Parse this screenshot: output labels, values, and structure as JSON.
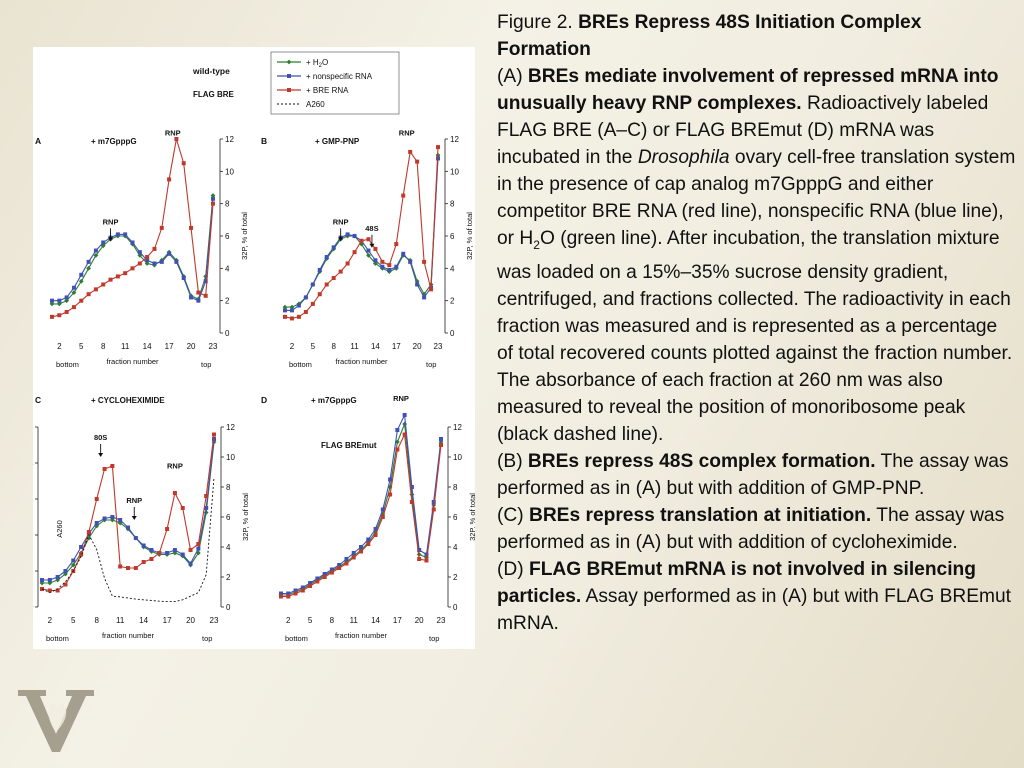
{
  "colors": {
    "h2o": "#2e7d32",
    "nonspecific": "#3f51b5",
    "bre": "#c0392b",
    "a260": "#111111"
  },
  "legend": {
    "group_title": "wild-type",
    "group_subtitle": "FLAG BRE",
    "entries": [
      {
        "prefix": "+ H",
        "sub": "2",
        "suffix": "O",
        "color": "#2e7d32",
        "marker": "diamond"
      },
      {
        "prefix": "+ nonspecific RNA",
        "sub": "",
        "suffix": "",
        "color": "#3f51b5",
        "marker": "square"
      },
      {
        "prefix": "+ BRE RNA",
        "sub": "",
        "suffix": "",
        "color": "#c0392b",
        "marker": "square"
      },
      {
        "prefix": "A260",
        "sub": "",
        "suffix": "",
        "color": "#111111",
        "marker": "dashed"
      }
    ]
  },
  "common": {
    "xticks": [
      "2",
      "5",
      "8",
      "11",
      "14",
      "17",
      "20",
      "23"
    ],
    "xlabel": "fraction number",
    "bottom_label": "bottom",
    "top_label": "top",
    "ylabel_right": "32P, % of total"
  },
  "chart_data": [
    {
      "letter": "A",
      "title": "+ m7GpppG",
      "type": "line",
      "xlim": [
        1,
        23
      ],
      "ylim": [
        0,
        12
      ],
      "yticks": [
        "0",
        "2",
        "4",
        "6",
        "8",
        "10",
        "12"
      ],
      "annotations": [
        {
          "text": "RNP",
          "x": 17.5,
          "y": 12.1,
          "arrow": false
        },
        {
          "text": "RNP",
          "x": 9,
          "y": 6.6,
          "arrow": true
        }
      ],
      "series": [
        {
          "name": "+ H2O",
          "key": "h2o",
          "x": [
            1,
            2,
            3,
            4,
            5,
            6,
            7,
            8,
            9,
            10,
            11,
            12,
            13,
            14,
            15,
            16,
            17,
            18,
            19,
            20,
            21,
            22,
            23
          ],
          "values": [
            1.8,
            1.8,
            2,
            2.5,
            3.2,
            4,
            4.8,
            5.4,
            5.8,
            6,
            6,
            5.5,
            4.8,
            4.3,
            4.2,
            4.5,
            5,
            4.5,
            3.5,
            2.3,
            2.1,
            3.5,
            8.5
          ]
        },
        {
          "name": "+ nonspecific RNA",
          "key": "nonspecific",
          "x": [
            1,
            2,
            3,
            4,
            5,
            6,
            7,
            8,
            9,
            10,
            11,
            12,
            13,
            14,
            15,
            16,
            17,
            18,
            19,
            20,
            21,
            22,
            23
          ],
          "values": [
            2,
            2,
            2.2,
            2.8,
            3.6,
            4.4,
            5.1,
            5.6,
            5.9,
            6.1,
            6.1,
            5.6,
            5,
            4.5,
            4.3,
            4.4,
            4.9,
            4.4,
            3.4,
            2.2,
            2,
            3.2,
            8.3
          ]
        },
        {
          "name": "+ BRE RNA",
          "key": "bre",
          "x": [
            1,
            2,
            3,
            4,
            5,
            6,
            7,
            8,
            9,
            10,
            11,
            12,
            13,
            14,
            15,
            16,
            17,
            18,
            19,
            20,
            21,
            22,
            23
          ],
          "values": [
            1,
            1.1,
            1.3,
            1.6,
            2,
            2.4,
            2.7,
            3,
            3.3,
            3.5,
            3.7,
            4,
            4.3,
            4.7,
            5.2,
            6.5,
            9.5,
            12,
            10.5,
            6.5,
            2.5,
            2.3,
            8
          ]
        }
      ]
    },
    {
      "letter": "B",
      "title": "+ GMP-PNP",
      "type": "line",
      "xlim": [
        1,
        23
      ],
      "ylim": [
        0,
        12
      ],
      "yticks": [
        "0",
        "2",
        "4",
        "6",
        "8",
        "10",
        "12"
      ],
      "annotations": [
        {
          "text": "RNP",
          "x": 18.5,
          "y": 12.1,
          "arrow": false
        },
        {
          "text": "RNP",
          "x": 9,
          "y": 6.6,
          "arrow": true
        },
        {
          "text": "48S",
          "x": 13.5,
          "y": 6.2,
          "arrow": true
        }
      ],
      "series": [
        {
          "name": "+ H2O",
          "key": "h2o",
          "x": [
            1,
            2,
            3,
            4,
            5,
            6,
            7,
            8,
            9,
            10,
            11,
            12,
            13,
            14,
            15,
            16,
            17,
            18,
            19,
            20,
            21,
            22,
            23
          ],
          "values": [
            1.6,
            1.6,
            1.8,
            2.2,
            3,
            3.8,
            4.6,
            5.2,
            5.8,
            6,
            6,
            5.5,
            4.8,
            4.3,
            4,
            3.8,
            4,
            4.8,
            4.5,
            3.2,
            2.4,
            3,
            11
          ]
        },
        {
          "name": "+ nonspecific RNA",
          "key": "nonspecific",
          "x": [
            1,
            2,
            3,
            4,
            5,
            6,
            7,
            8,
            9,
            10,
            11,
            12,
            13,
            14,
            15,
            16,
            17,
            18,
            19,
            20,
            21,
            22,
            23
          ],
          "values": [
            1.4,
            1.4,
            1.7,
            2.2,
            3,
            3.9,
            4.7,
            5.3,
            5.9,
            6.1,
            6,
            5.7,
            5.1,
            4.5,
            4.1,
            3.9,
            4.1,
            4.9,
            4.4,
            3,
            2.2,
            2.8,
            10.8
          ]
        },
        {
          "name": "+ BRE RNA",
          "key": "bre",
          "x": [
            1,
            2,
            3,
            4,
            5,
            6,
            7,
            8,
            9,
            10,
            11,
            12,
            13,
            14,
            15,
            16,
            17,
            18,
            19,
            20,
            21,
            22,
            23
          ],
          "values": [
            1,
            0.9,
            1,
            1.3,
            1.8,
            2.4,
            3,
            3.4,
            3.8,
            4.3,
            5,
            5.7,
            5.8,
            5.2,
            4.4,
            4.2,
            5.5,
            8.5,
            11.2,
            10.6,
            4.4,
            2.7,
            11.5
          ]
        }
      ]
    },
    {
      "letter": "C",
      "title": "+ CYCLOHEXIMIDE",
      "type": "line",
      "xlim": [
        1,
        23
      ],
      "ylim": [
        0,
        12
      ],
      "yticks": [
        "0",
        "2",
        "4",
        "6",
        "8",
        "10",
        "12"
      ],
      "yticks_left": [
        "0",
        "1",
        "2",
        "3",
        "4",
        "5"
      ],
      "ylabel_left": "A260",
      "ylim_left": [
        0,
        5
      ],
      "annotations": [
        {
          "text": "80S",
          "x": 8.5,
          "y": 11,
          "arrow": true
        },
        {
          "text": "RNP",
          "x": 18,
          "y": 9.1,
          "arrow": false
        },
        {
          "text": "RNP",
          "x": 12.8,
          "y": 6.8,
          "arrow": true
        }
      ],
      "series": [
        {
          "name": "+ H2O",
          "key": "h2o",
          "x": [
            1,
            2,
            3,
            4,
            5,
            6,
            7,
            8,
            9,
            10,
            11,
            12,
            13,
            14,
            15,
            16,
            17,
            18,
            19,
            20,
            21,
            22,
            23
          ],
          "values": [
            1.6,
            1.6,
            1.8,
            2.2,
            2.8,
            3.6,
            4.6,
            5.4,
            5.8,
            5.8,
            5.6,
            5.2,
            4.6,
            4,
            3.7,
            3.5,
            3.5,
            3.6,
            3.4,
            2.8,
            3.6,
            6.3,
            11
          ]
        },
        {
          "name": "+ nonspecific RNA",
          "key": "nonspecific",
          "x": [
            1,
            2,
            3,
            4,
            5,
            6,
            7,
            8,
            9,
            10,
            11,
            12,
            13,
            14,
            15,
            16,
            17,
            18,
            19,
            20,
            21,
            22,
            23
          ],
          "values": [
            1.8,
            1.8,
            2,
            2.4,
            3.1,
            4,
            4.9,
            5.6,
            5.9,
            6,
            5.8,
            5.3,
            4.6,
            4.1,
            3.8,
            3.6,
            3.6,
            3.8,
            3.5,
            2.9,
            3.9,
            6.6,
            11.2
          ]
        },
        {
          "name": "+ BRE RNA",
          "key": "bre",
          "x": [
            1,
            2,
            3,
            4,
            5,
            6,
            7,
            8,
            9,
            10,
            11,
            12,
            13,
            14,
            15,
            16,
            17,
            18,
            19,
            20,
            21,
            22,
            23
          ],
          "values": [
            1.2,
            1.1,
            1.1,
            1.5,
            2.4,
            3.5,
            5,
            7.2,
            9.2,
            9.4,
            2.7,
            2.6,
            2.6,
            3,
            3.2,
            3.6,
            5.2,
            7.6,
            6.6,
            3.8,
            4.2,
            7.4,
            11.5
          ]
        },
        {
          "name": "A260",
          "key": "a260",
          "axis": "left",
          "x": [
            1,
            2,
            3,
            4,
            5,
            6,
            7,
            8,
            9,
            10,
            11,
            12,
            13,
            14,
            15,
            16,
            17,
            18,
            19,
            20,
            21,
            22,
            23
          ],
          "values": [
            0.5,
            0.4,
            0.5,
            0.7,
            1,
            1.4,
            2,
            1.6,
            0.8,
            0.3,
            0.28,
            0.25,
            0.22,
            0.2,
            0.18,
            0.16,
            0.15,
            0.15,
            0.2,
            0.3,
            0.4,
            0.9,
            3.6
          ]
        }
      ]
    },
    {
      "letter": "D",
      "title": "+ m7GpppG",
      "subtitle": "FLAG BREmut",
      "type": "line",
      "xlim": [
        1,
        23
      ],
      "ylim": [
        0,
        12
      ],
      "yticks": [
        "0",
        "2",
        "4",
        "6",
        "8",
        "10",
        "12"
      ],
      "annotations": [
        {
          "text": "RNP",
          "x": 17.5,
          "y": 13.6,
          "arrow": false
        }
      ],
      "series": [
        {
          "name": "+ H2O",
          "key": "h2o",
          "x": [
            1,
            2,
            3,
            4,
            5,
            6,
            7,
            8,
            9,
            10,
            11,
            12,
            13,
            14,
            15,
            16,
            17,
            18,
            19,
            20,
            21,
            22,
            23
          ],
          "values": [
            0.8,
            0.8,
            1,
            1.2,
            1.5,
            1.8,
            2.1,
            2.4,
            2.7,
            3,
            3.4,
            3.8,
            4.3,
            5,
            6.2,
            8,
            11,
            12.2,
            7.5,
            3.5,
            3.3,
            6.8,
            11
          ]
        },
        {
          "name": "+ nonspecific RNA",
          "key": "nonspecific",
          "x": [
            1,
            2,
            3,
            4,
            5,
            6,
            7,
            8,
            9,
            10,
            11,
            12,
            13,
            14,
            15,
            16,
            17,
            18,
            19,
            20,
            21,
            22,
            23
          ],
          "values": [
            0.9,
            0.9,
            1.1,
            1.3,
            1.6,
            1.9,
            2.2,
            2.5,
            2.8,
            3.2,
            3.6,
            4,
            4.5,
            5.2,
            6.5,
            8.5,
            11.8,
            12.8,
            8,
            3.8,
            3.5,
            7,
            11.2
          ]
        },
        {
          "name": "+ BRE RNA",
          "key": "bre",
          "x": [
            1,
            2,
            3,
            4,
            5,
            6,
            7,
            8,
            9,
            10,
            11,
            12,
            13,
            14,
            15,
            16,
            17,
            18,
            19,
            20,
            21,
            22,
            23
          ],
          "values": [
            0.7,
            0.7,
            0.9,
            1.1,
            1.4,
            1.7,
            2,
            2.3,
            2.6,
            2.9,
            3.3,
            3.7,
            4.2,
            4.8,
            6,
            7.5,
            10.5,
            11.5,
            7,
            3.2,
            3.1,
            6.5,
            10.8
          ]
        }
      ]
    }
  ],
  "caption": {
    "fig_prefix": "Figure 2. ",
    "fig_title": "BREs Repress 48S Initiation Complex Formation",
    "a_prefix": "(A) ",
    "a_title": "BREs mediate involvement of repressed mRNA into unusually heavy RNP complexes.",
    "a_text_1": " Radioactively labeled FLAG BRE (A–C) or FLAG BREmut (D) mRNA was incubated in the ",
    "a_italic": "Drosophila",
    "a_text_2": " ovary cell-free translation system in the presence of cap analog m7GpppG and either competitor BRE RNA (red line), nonspecific RNA (blue line), or H",
    "a_sub": "2",
    "a_text_3": "O (green line). After incubation, the translation mixture was loaded on a 15%–35% sucrose density gradient, centrifuged, and fractions collected. The radioactivity in each fraction was measured and is represented as a percentage of total recovered counts plotted against the fraction number. The absorbance of each fraction at 260 nm was also measured to reveal the position of monoribosome peak (black dashed line).",
    "b_prefix": "(B) ",
    "b_title": "BREs repress 48S complex formation.",
    "b_text": " The assay was performed as in (A) but with addition of GMP-PNP.",
    "c_prefix": "(C) ",
    "c_title": "BREs repress translation at initiation.",
    "c_text": " The assay was performed as in (A) but with addition of cycloheximide.",
    "d_prefix": "(D) ",
    "d_title": "FLAG BREmut mRNA is not involved in silencing particles.",
    "d_text": " Assay performed as in (A) but with FLAG BREmut mRNA."
  }
}
